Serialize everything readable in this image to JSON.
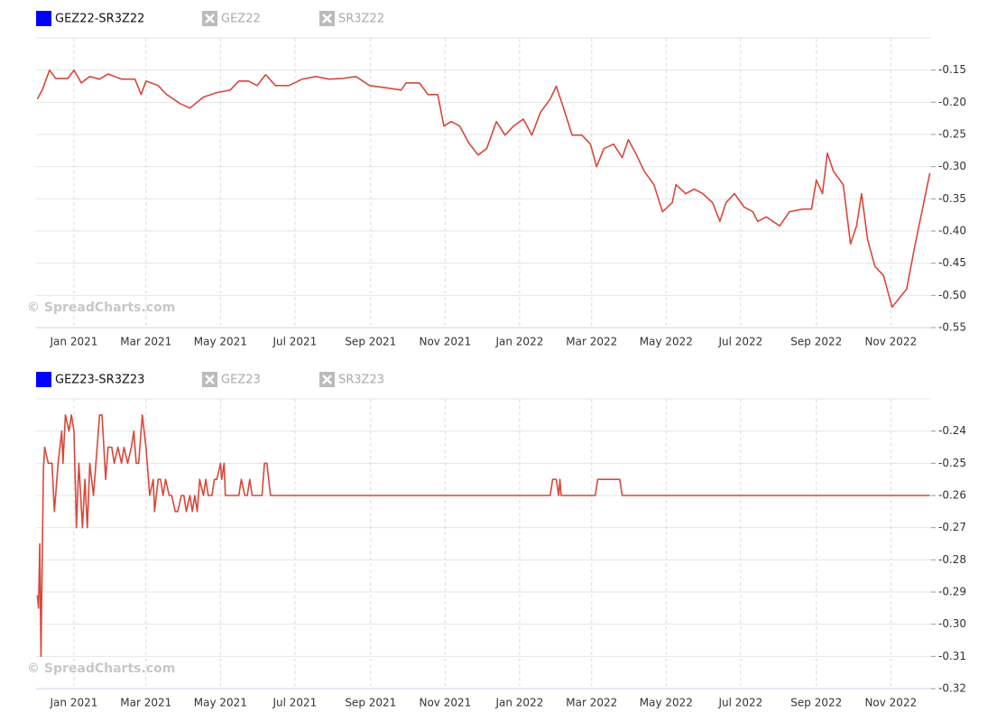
{
  "chart_data": [
    {
      "type": "line",
      "series": [
        {
          "name": "GEZ22-SR3Z22",
          "color": "#d9473b",
          "legend_color": "#0000ff",
          "x": [
            -30,
            -26,
            -20,
            -15,
            -5,
            0,
            6,
            13,
            21,
            28,
            39,
            50,
            55,
            59,
            69,
            76,
            87,
            95,
            106,
            117,
            128,
            135,
            143,
            150,
            157,
            165,
            176,
            187,
            198,
            209,
            220,
            231,
            242,
            257,
            268,
            272,
            283,
            290,
            298,
            303,
            309,
            316,
            323,
            331,
            338,
            346,
            353,
            360,
            368,
            375,
            382,
            390,
            395,
            401,
            408,
            416,
            423,
            428,
            434,
            442,
            449,
            454,
            460,
            467,
            475,
            482,
            490,
            493,
            501,
            508,
            515,
            523,
            529,
            534,
            541,
            549,
            556,
            560,
            567,
            578,
            586,
            597,
            604,
            608,
            613,
            617,
            622,
            630,
            636,
            641,
            645,
            650,
            656,
            663,
            670,
            676,
            682,
            689,
            696,
            701
          ],
          "values": [
            -0.195,
            -0.181,
            -0.15,
            -0.163,
            -0.163,
            -0.15,
            -0.17,
            -0.16,
            -0.164,
            -0.156,
            -0.164,
            -0.164,
            -0.188,
            -0.167,
            -0.174,
            -0.188,
            -0.202,
            -0.209,
            -0.192,
            -0.185,
            -0.181,
            -0.167,
            -0.167,
            -0.174,
            -0.157,
            -0.174,
            -0.174,
            -0.164,
            -0.16,
            -0.164,
            -0.163,
            -0.16,
            -0.174,
            -0.178,
            -0.181,
            -0.17,
            -0.17,
            -0.188,
            -0.188,
            -0.237,
            -0.23,
            -0.237,
            -0.262,
            -0.282,
            -0.272,
            -0.23,
            -0.251,
            -0.237,
            -0.226,
            -0.251,
            -0.216,
            -0.195,
            -0.175,
            -0.209,
            -0.251,
            -0.251,
            -0.265,
            -0.3,
            -0.272,
            -0.265,
            -0.286,
            -0.258,
            -0.279,
            -0.307,
            -0.328,
            -0.37,
            -0.356,
            -0.328,
            -0.342,
            -0.335,
            -0.342,
            -0.356,
            -0.385,
            -0.356,
            -0.342,
            -0.363,
            -0.37,
            -0.385,
            -0.378,
            -0.392,
            -0.37,
            -0.366,
            -0.366,
            -0.321,
            -0.342,
            -0.279,
            -0.307,
            -0.328,
            -0.42,
            -0.392,
            -0.342,
            -0.413,
            -0.455,
            -0.469,
            -0.518,
            -0.504,
            -0.49,
            -0.42,
            -0.356,
            -0.31
          ]
        }
      ],
      "hidden_series": [
        "GEZ22",
        "SR3Z22"
      ],
      "watermark": "© SpreadCharts.com",
      "xlim": [
        -31,
        702
      ],
      "xticks": [
        {
          "value": 0,
          "label": "Jan 2021"
        },
        {
          "value": 59,
          "label": "Mar 2021"
        },
        {
          "value": 120,
          "label": "May 2021"
        },
        {
          "value": 181,
          "label": "Jul 2021"
        },
        {
          "value": 243,
          "label": "Sep 2021"
        },
        {
          "value": 304,
          "label": "Nov 2021"
        },
        {
          "value": 365,
          "label": "Jan 2022"
        },
        {
          "value": 424,
          "label": "Mar 2022"
        },
        {
          "value": 485,
          "label": "May 2022"
        },
        {
          "value": 546,
          "label": "Jul 2022"
        },
        {
          "value": 608,
          "label": "Sep 2022"
        },
        {
          "value": 669,
          "label": "Nov 2022"
        }
      ],
      "ylim": [
        -0.55,
        -0.1
      ],
      "yticks": [
        -0.15,
        {
          "value": -0.2,
          "label": "-0.20"
        },
        -0.25,
        {
          "value": -0.3,
          "label": "-0.30"
        },
        -0.35,
        {
          "value": -0.4,
          "label": "-0.40"
        },
        -0.45,
        {
          "value": -0.5,
          "label": "-0.50"
        },
        -0.55
      ],
      "grid": true
    },
    {
      "type": "line",
      "series": [
        {
          "name": "GEZ23-SR3Z23",
          "color": "#d9473b",
          "legend_color": "#0000ff",
          "x": [
            -30,
            -29,
            -28,
            -27,
            -25,
            -24,
            -21,
            -18,
            -16,
            -13,
            -10,
            -9,
            -7,
            -4,
            -2,
            0,
            2,
            4,
            7,
            9,
            11,
            13,
            16,
            18,
            21,
            23,
            26,
            28,
            31,
            33,
            36,
            39,
            41,
            44,
            47,
            49,
            51,
            53,
            56,
            59,
            62,
            65,
            66,
            69,
            71,
            73,
            75,
            78,
            80,
            83,
            85,
            88,
            90,
            92,
            95,
            97,
            99,
            101,
            103,
            106,
            108,
            110,
            113,
            115,
            117,
            120,
            121,
            123,
            124,
            128,
            135,
            137,
            140,
            142,
            144,
            146,
            154,
            156,
            158,
            161,
            390,
            392,
            395,
            397,
            398,
            399,
            427,
            429,
            447,
            449,
            701
          ],
          "values": [
            -0.291,
            -0.295,
            -0.275,
            -0.31,
            -0.252,
            -0.245,
            -0.25,
            -0.25,
            -0.265,
            -0.25,
            -0.24,
            -0.25,
            -0.235,
            -0.24,
            -0.235,
            -0.24,
            -0.27,
            -0.25,
            -0.27,
            -0.255,
            -0.27,
            -0.25,
            -0.26,
            -0.25,
            -0.235,
            -0.235,
            -0.255,
            -0.245,
            -0.245,
            -0.25,
            -0.245,
            -0.25,
            -0.245,
            -0.25,
            -0.245,
            -0.24,
            -0.25,
            -0.25,
            -0.235,
            -0.245,
            -0.26,
            -0.255,
            -0.265,
            -0.255,
            -0.255,
            -0.26,
            -0.255,
            -0.26,
            -0.26,
            -0.265,
            -0.265,
            -0.26,
            -0.26,
            -0.265,
            -0.26,
            -0.265,
            -0.26,
            -0.265,
            -0.255,
            -0.26,
            -0.255,
            -0.26,
            -0.26,
            -0.255,
            -0.255,
            -0.25,
            -0.255,
            -0.25,
            -0.26,
            -0.26,
            -0.26,
            -0.255,
            -0.26,
            -0.26,
            -0.255,
            -0.26,
            -0.26,
            -0.25,
            -0.25,
            -0.26,
            -0.26,
            -0.255,
            -0.255,
            -0.26,
            -0.255,
            -0.26,
            -0.26,
            -0.255,
            -0.255,
            -0.26,
            -0.26
          ]
        }
      ],
      "hidden_series": [
        "GEZ23",
        "SR3Z23"
      ],
      "watermark": "© SpreadCharts.com",
      "xlim": [
        -31,
        702
      ],
      "xticks": [
        {
          "value": 0,
          "label": "Jan 2021"
        },
        {
          "value": 59,
          "label": "Mar 2021"
        },
        {
          "value": 120,
          "label": "May 2021"
        },
        {
          "value": 181,
          "label": "Jul 2021"
        },
        {
          "value": 243,
          "label": "Sep 2021"
        },
        {
          "value": 304,
          "label": "Nov 2021"
        },
        {
          "value": 365,
          "label": "Jan 2022"
        },
        {
          "value": 424,
          "label": "Mar 2022"
        },
        {
          "value": 485,
          "label": "May 2022"
        },
        {
          "value": 546,
          "label": "Jul 2022"
        },
        {
          "value": 608,
          "label": "Sep 2022"
        },
        {
          "value": 669,
          "label": "Nov 2022"
        }
      ],
      "ylim": [
        -0.32,
        -0.23
      ],
      "yticks": [
        -0.24,
        -0.25,
        -0.26,
        -0.27,
        -0.28,
        -0.29,
        {
          "value": -0.3,
          "label": "-0.30"
        },
        -0.31,
        -0.32
      ],
      "grid": true
    }
  ]
}
